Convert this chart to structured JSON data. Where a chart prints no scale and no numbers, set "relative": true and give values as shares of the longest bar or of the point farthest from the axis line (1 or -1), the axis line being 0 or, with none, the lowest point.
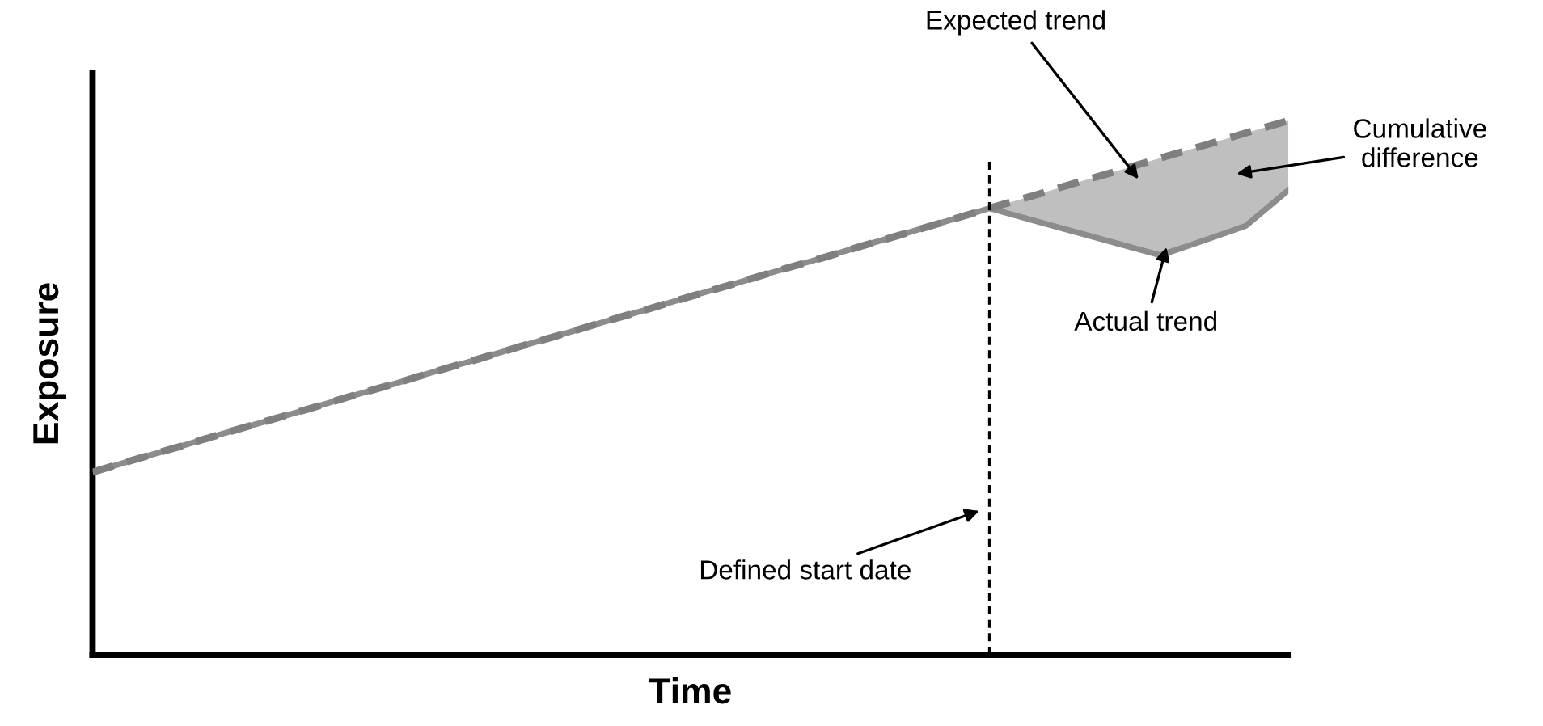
{
  "chart_data": {
    "type": "line",
    "relative": true,
    "xlabel": "Time",
    "ylabel": "Exposure",
    "categories": [
      null,
      null,
      null,
      null,
      null,
      null,
      null,
      null,
      null,
      null,
      null,
      null,
      null,
      null,
      null,
      null,
      null,
      null,
      null,
      null,
      null,
      null,
      null,
      null,
      null,
      null,
      null,
      null,
      null
    ],
    "series": [
      {
        "name": "Actual trend",
        "color": "#8c8c8c",
        "line_style": "solid",
        "values": [
          0.342,
          0.366,
          0.389,
          0.413,
          0.436,
          0.459,
          0.483,
          0.506,
          0.53,
          0.553,
          0.577,
          0.6,
          0.624,
          0.647,
          0.671,
          0.694,
          0.718,
          0.741,
          0.765,
          0.788,
          0.812,
          0.836,
          0.814,
          0.792,
          0.77,
          0.748,
          0.775,
          0.803,
          0.87
        ],
        "lower": [
          null,
          null,
          null,
          null,
          null,
          null,
          null,
          null,
          null,
          null,
          null,
          null,
          null,
          null,
          null,
          null,
          null,
          null,
          null,
          null,
          null,
          0.836,
          0.814,
          0.792,
          0.77,
          0.748,
          0.775,
          0.803,
          0.87
        ],
        "upper": [
          null,
          null,
          null,
          null,
          null,
          null,
          null,
          null,
          null,
          null,
          null,
          null,
          null,
          null,
          null,
          null,
          null,
          null,
          null,
          null,
          null,
          0.836,
          0.859,
          0.883,
          0.906,
          0.93,
          0.953,
          0.977,
          1.0
        ]
      },
      {
        "name": "Expected trend",
        "color": "#7f7f7f",
        "line_style": "dashed",
        "values": [
          0.342,
          0.366,
          0.389,
          0.413,
          0.436,
          0.459,
          0.483,
          0.506,
          0.53,
          0.553,
          0.577,
          0.6,
          0.624,
          0.647,
          0.671,
          0.694,
          0.718,
          0.741,
          0.765,
          0.788,
          0.812,
          0.836,
          0.859,
          0.883,
          0.906,
          0.93,
          0.953,
          0.977,
          1.0
        ]
      }
    ],
    "annotations": [
      "Defined start date",
      "Cumulative\ndifference"
    ]
  }
}
